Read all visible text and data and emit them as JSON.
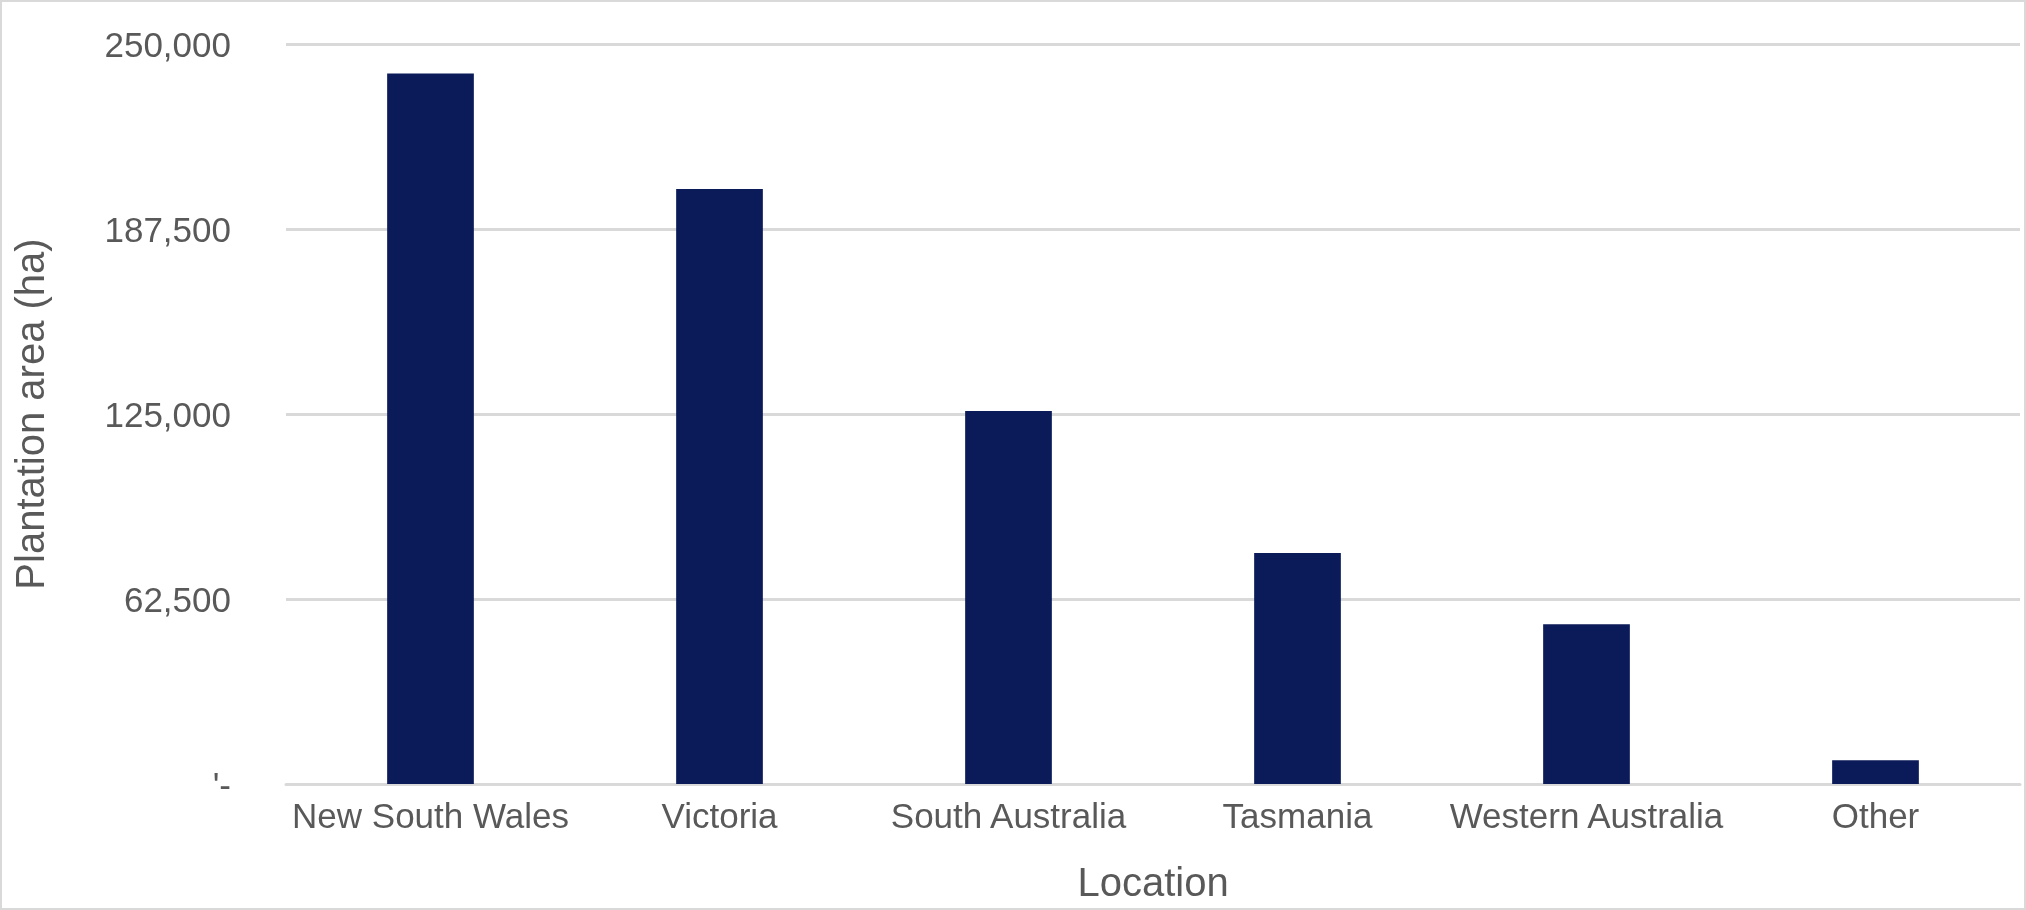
{
  "chart_data": {
    "type": "bar",
    "xlabel": "Location",
    "ylabel": "Plantation area (ha)",
    "categories": [
      "New South Wales",
      "Victoria",
      "South Australia",
      "Tasmania",
      "Western Australia",
      "Other"
    ],
    "values": [
      240000,
      201000,
      126000,
      78000,
      54000,
      8000
    ],
    "color": "#0b1a59",
    "ylim": [
      0,
      250000
    ],
    "yticks": [
      {
        "value": 0,
        "label": "'-"
      },
      {
        "value": 62500,
        "label": "62,500"
      },
      {
        "value": 125000,
        "label": "125,000"
      },
      {
        "value": 187500,
        "label": "187,500"
      },
      {
        "value": 250000,
        "label": "250,000"
      }
    ],
    "grid": "y"
  }
}
